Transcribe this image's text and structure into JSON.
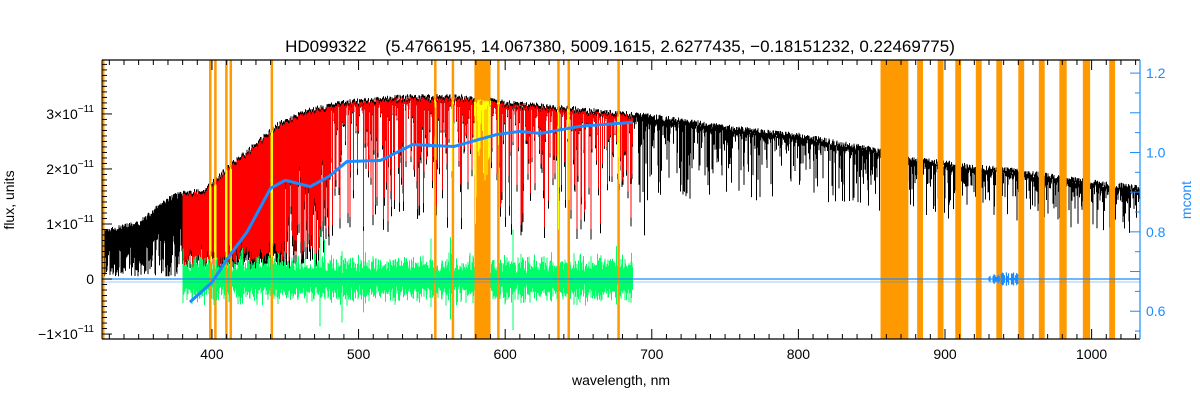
{
  "chart_data": {
    "type": "line",
    "title": "HD099322    (5.4766195, 14.067380, 5009.1615, 2.6277435, −0.18151232, 0.22469775)",
    "xlabel": "wavelength, nm",
    "ylabel": "flux, units",
    "y2label": "mcont",
    "xlim": [
      325,
      1033
    ],
    "ylim": [
      -1.09e-11,
      3.98e-11
    ],
    "y2lim": [
      0.53,
      1.233
    ],
    "grid": false,
    "x_ticks": [
      {
        "value": 400,
        "label": "400"
      },
      {
        "value": 500,
        "label": "500"
      },
      {
        "value": 600,
        "label": "600"
      },
      {
        "value": 700,
        "label": "700"
      },
      {
        "value": 800,
        "label": "800"
      },
      {
        "value": 900,
        "label": "900"
      },
      {
        "value": 1000,
        "label": "1000"
      }
    ],
    "y_ticks": [
      {
        "value": -1,
        "mant": "−1×10",
        "exp": "−11"
      },
      {
        "value": 0,
        "mant": "0",
        "exp": ""
      },
      {
        "value": 1,
        "mant": "1×10",
        "exp": "−11"
      },
      {
        "value": 2,
        "mant": "2×10",
        "exp": "−11"
      },
      {
        "value": 3,
        "mant": "3×10",
        "exp": "−11"
      }
    ],
    "y2_ticks": [
      {
        "value": 0.6,
        "label": "0.6"
      },
      {
        "value": 0.8,
        "label": "0.8"
      },
      {
        "value": 1.0,
        "label": "1.0"
      },
      {
        "value": 1.2,
        "label": "1.2"
      }
    ],
    "flux_unit_exponent": -11,
    "series": [
      {
        "name": "observed flux",
        "color": "#000000",
        "range_nm": [
          325,
          1033
        ],
        "upper_envelope": [
          [
            325,
            0.85
          ],
          [
            350,
            1.0
          ],
          [
            370,
            1.45
          ],
          [
            380,
            1.55
          ],
          [
            395,
            1.6
          ],
          [
            410,
            2.0
          ],
          [
            430,
            2.45
          ],
          [
            445,
            2.8
          ],
          [
            465,
            3.05
          ],
          [
            490,
            3.2
          ],
          [
            530,
            3.3
          ],
          [
            570,
            3.3
          ],
          [
            600,
            3.2
          ],
          [
            640,
            3.1
          ],
          [
            680,
            3.0
          ],
          [
            700,
            2.95
          ],
          [
            750,
            2.75
          ],
          [
            800,
            2.6
          ],
          [
            850,
            2.35
          ],
          [
            870,
            2.2
          ],
          [
            900,
            2.1
          ],
          [
            950,
            1.95
          ],
          [
            1000,
            1.75
          ],
          [
            1033,
            1.65
          ]
        ]
      },
      {
        "name": "model fit",
        "color": "#ff0000",
        "masked_color": "#ffff00",
        "range_nm": [
          380,
          687
        ]
      },
      {
        "name": "residuals",
        "color": "#00ff66",
        "range_nm": [
          380,
          687
        ],
        "typical_amplitude": 0.35
      },
      {
        "name": "flux error",
        "color": "#1a8cff",
        "range_nm": [
          325,
          1033
        ]
      },
      {
        "name": "mcont",
        "axis": "right",
        "color": "#1a8cff",
        "points": [
          [
            385,
            0.623
          ],
          [
            400,
            0.673
          ],
          [
            412,
            0.74
          ],
          [
            424,
            0.8
          ],
          [
            440,
            0.91
          ],
          [
            450,
            0.93
          ],
          [
            467,
            0.914
          ],
          [
            480,
            0.94
          ],
          [
            492,
            0.977
          ],
          [
            515,
            0.98
          ],
          [
            537,
            1.02
          ],
          [
            565,
            1.015
          ],
          [
            594,
            1.045
          ],
          [
            610,
            1.053
          ],
          [
            624,
            1.048
          ],
          [
            651,
            1.066
          ],
          [
            687,
            1.076
          ]
        ]
      }
    ],
    "masked_bands_nm": [
      [
        325,
        326.5
      ],
      [
        398,
        399.5
      ],
      [
        401.5,
        403
      ],
      [
        409,
        410.5
      ],
      [
        412,
        413.5
      ],
      [
        440,
        441.5
      ],
      [
        551.5,
        553
      ],
      [
        563.5,
        565
      ],
      [
        579,
        590
      ],
      [
        594.5,
        596
      ],
      [
        635.5,
        637
      ],
      [
        642.5,
        644
      ],
      [
        676.5,
        678
      ],
      [
        856,
        875
      ],
      [
        881,
        885
      ],
      [
        895,
        899
      ],
      [
        907,
        911
      ],
      [
        921,
        925
      ],
      [
        935,
        939
      ],
      [
        950,
        954
      ],
      [
        964,
        968
      ],
      [
        978,
        983
      ],
      [
        994,
        999
      ],
      [
        1012,
        1016
      ]
    ],
    "band_color": "#ff9900"
  }
}
